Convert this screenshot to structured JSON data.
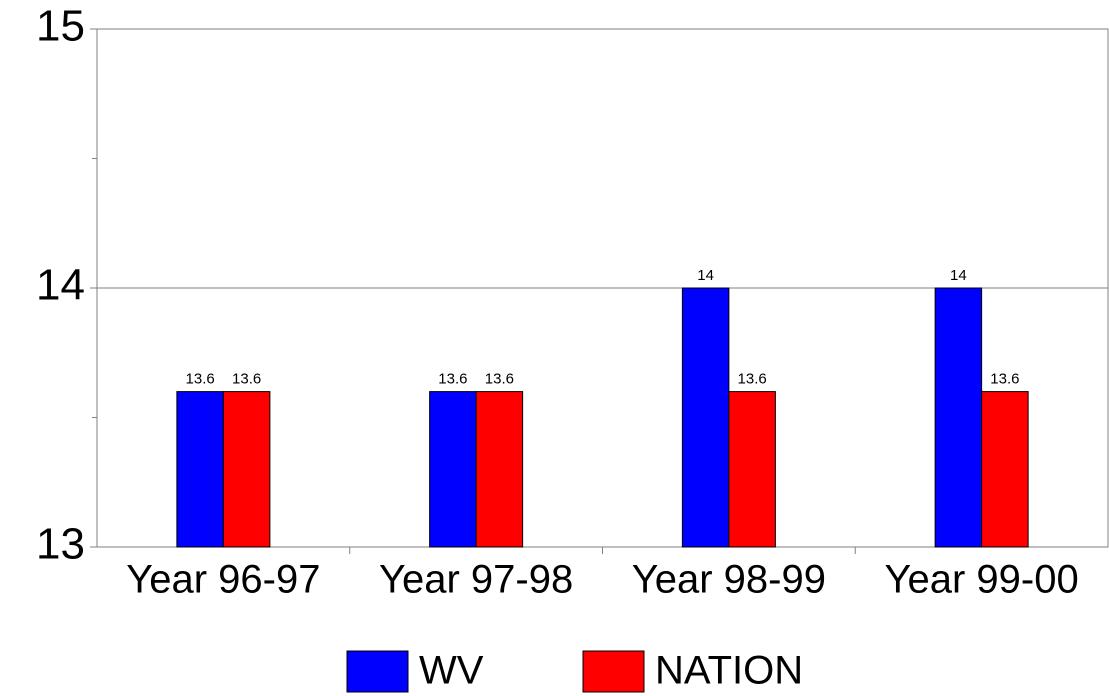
{
  "chart_data": {
    "type": "bar",
    "categories": [
      "Year 96-97",
      "Year 97-98",
      "Year 98-99",
      "Year 99-00"
    ],
    "series": [
      {
        "name": "WV",
        "color": "#0000ff",
        "values": [
          13.6,
          13.6,
          14,
          14
        ]
      },
      {
        "name": "NATION",
        "color": "#ff0000",
        "values": [
          13.6,
          13.6,
          13.6,
          13.6
        ]
      }
    ],
    "ylim": [
      13,
      15
    ],
    "yticks": [
      13,
      14,
      15
    ],
    "minor_yticks": [
      13.5,
      14.5
    ],
    "grid": true,
    "legend": "bottom"
  }
}
